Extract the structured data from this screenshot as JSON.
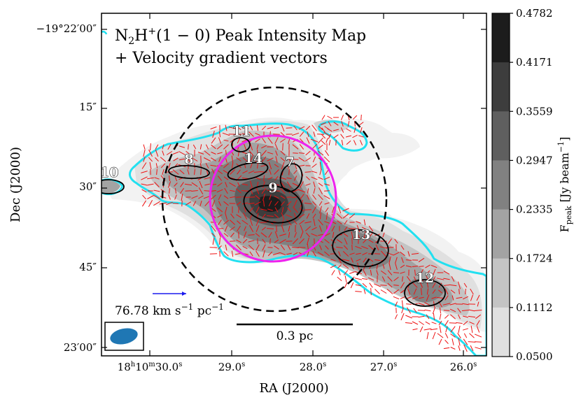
{
  "chart_data": {
    "type": "heatmap",
    "title_line1": "N2H+(1 − 0) Peak Intensity Map",
    "title_line2": "+ Velocity gradient vectors",
    "xlabel": "RA (J2000)",
    "ylabel": "Dec (J2000)",
    "colorbar_label": "Fpeak [Jy beam−1]",
    "x_ticks": [
      "18h10m30.0s",
      "29.0s",
      "28.0s",
      "27.0s",
      "26.0s"
    ],
    "y_ticks": [
      "−19°22′00″",
      "15″",
      "30″",
      "45″",
      "23′00″"
    ],
    "colorbar_levels": [
      0.4782,
      0.4171,
      0.3559,
      0.2947,
      0.2335,
      0.1724,
      0.1112,
      0.05
    ],
    "colorbar_colors": [
      "#1c1c1c",
      "#3d3d3d",
      "#5f5f5f",
      "#818181",
      "#a3a3a3",
      "#c4c4c4",
      "#e0e0e0"
    ],
    "cores": [
      {
        "id": "7"
      },
      {
        "id": "8"
      },
      {
        "id": "9"
      },
      {
        "id": "10"
      },
      {
        "id": "11"
      },
      {
        "id": "12"
      },
      {
        "id": "13"
      },
      {
        "id": "14"
      }
    ],
    "reference_vector_label": "76.78 km s−1 pc−1",
    "scale_bar_label": "0.3 pc",
    "colors": {
      "vectors": "#ee1111",
      "contour": "#22e0f0",
      "magenta_circle": "#ee22ee",
      "reference_vector": "#1a1aee",
      "beam": "#1f77b4"
    }
  }
}
